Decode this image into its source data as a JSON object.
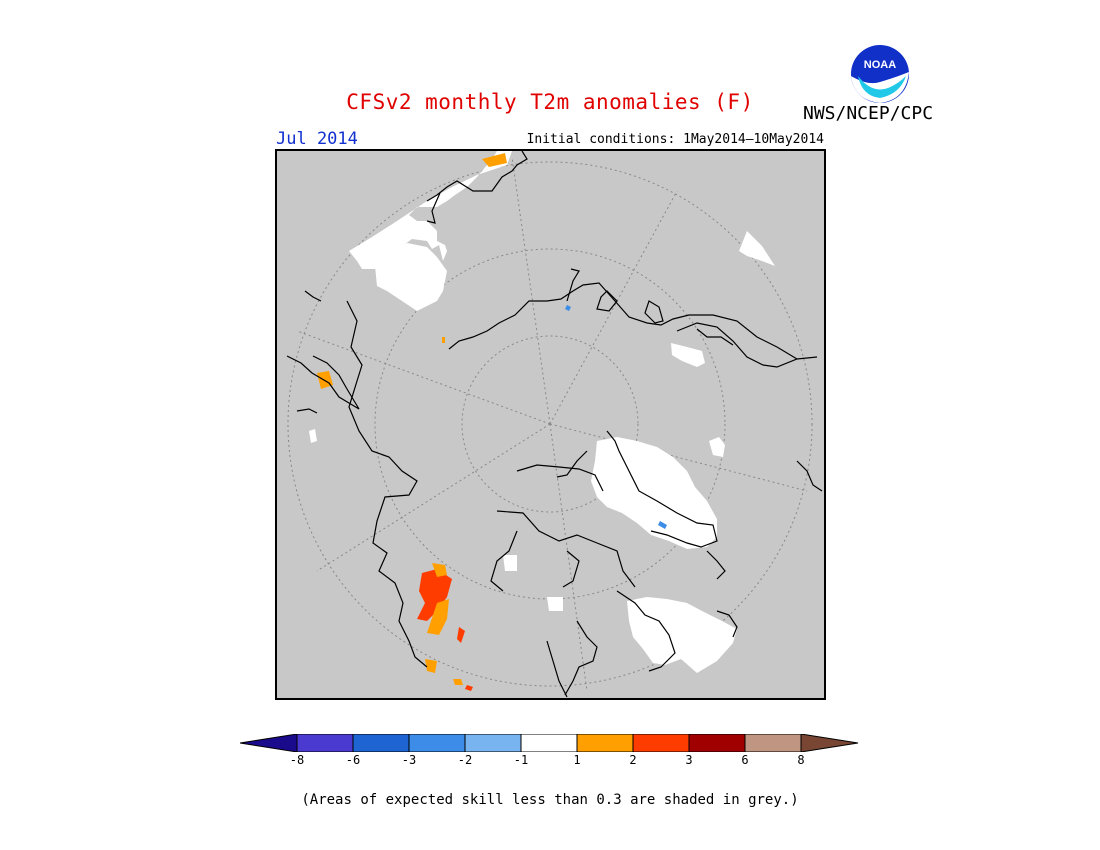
{
  "title": "CFSv2 monthly T2m anomalies (F)",
  "period": "Jul 2014",
  "initial_conditions": "Initial conditions: 1May2014–10May2014",
  "agency": "NWS/NCEP/CPC",
  "logo_text": "NOAA",
  "footnote": "(Areas of expected skill less than 0.3 are shaded in grey.)",
  "map": {
    "projection": "polar-stereographic (north pole)",
    "background_color": "#c8c8c8",
    "no_skill_color": "#c8c8c8"
  },
  "legend": {
    "colors": [
      "#1a0a8c",
      "#4a3ad0",
      "#1e64d2",
      "#3c8ce8",
      "#78b4f0",
      "#ffffff",
      "#ffa000",
      "#ff3c00",
      "#a00000",
      "#c09682",
      "#784632"
    ],
    "tick_labels": [
      "-8",
      "-6",
      "-3",
      "-2",
      "-1",
      "1",
      "2",
      "3",
      "6",
      "8"
    ]
  }
}
